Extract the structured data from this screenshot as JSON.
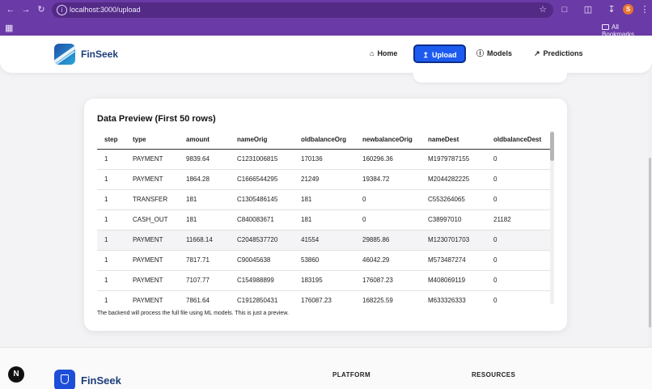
{
  "browser": {
    "url": "localhost:3000/upload",
    "profile_initial": "S",
    "bookmarks_label": "All Bookmarks"
  },
  "header": {
    "brand": "FinSeek",
    "nav": [
      {
        "label": "Home",
        "icon": "home-icon"
      },
      {
        "label": "Upload",
        "icon": "upload-icon"
      },
      {
        "label": "Models",
        "icon": "info-icon"
      },
      {
        "label": "Predictions",
        "icon": "trend-icon"
      }
    ]
  },
  "preview": {
    "title": "Data Preview (First 50 rows)",
    "columns": [
      "step",
      "type",
      "amount",
      "nameOrig",
      "oldbalanceOrg",
      "newbalanceOrig",
      "nameDest",
      "oldbalanceDest"
    ],
    "rows": [
      [
        "1",
        "PAYMENT",
        "9839.64",
        "C1231006815",
        "170136",
        "160296.36",
        "M1979787155",
        "0"
      ],
      [
        "1",
        "PAYMENT",
        "1864.28",
        "C1666544295",
        "21249",
        "19384.72",
        "M2044282225",
        "0"
      ],
      [
        "1",
        "TRANSFER",
        "181",
        "C1305486145",
        "181",
        "0",
        "C553264065",
        "0"
      ],
      [
        "1",
        "CASH_OUT",
        "181",
        "C840083671",
        "181",
        "0",
        "C38997010",
        "21182"
      ],
      [
        "1",
        "PAYMENT",
        "11668.14",
        "C2048537720",
        "41554",
        "29885.86",
        "M1230701703",
        "0"
      ],
      [
        "1",
        "PAYMENT",
        "7817.71",
        "C90045638",
        "53860",
        "46042.29",
        "M573487274",
        "0"
      ],
      [
        "1",
        "PAYMENT",
        "7107.77",
        "C154988899",
        "183195",
        "176087.23",
        "M408069119",
        "0"
      ],
      [
        "1",
        "PAYMENT",
        "7861.64",
        "C1912850431",
        "176087.23",
        "168225.59",
        "M633326333",
        "0"
      ]
    ],
    "note": "The backend will process the full file using ML models. This is just a preview."
  },
  "footer": {
    "brand": "FinSeek",
    "col1": "PLATFORM",
    "col2": "RESOURCES",
    "badge": "N"
  }
}
